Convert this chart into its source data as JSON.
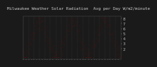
{
  "title": "Milwaukee Weather Solar Radiation",
  "subtitle": "Avg per Day W/m2/minute",
  "bg_color": "#1a1a1a",
  "plot_bg_color": "#1a1a1a",
  "line_color": "#ff0000",
  "grid_color": "#888888",
  "tick_color": "#cccccc",
  "title_color": "#cccccc",
  "ylim": [
    0,
    8.5
  ],
  "yticks": [
    2,
    3,
    4,
    5,
    6,
    7,
    8
  ],
  "ylabel_fontsize": 3.5,
  "xlabel_fontsize": 3.0,
  "title_fontsize": 4.2,
  "num_years": 3,
  "noise_seed": 42,
  "amplitude": 3.2,
  "baseline": 4.0,
  "noise_scale": 1.2
}
